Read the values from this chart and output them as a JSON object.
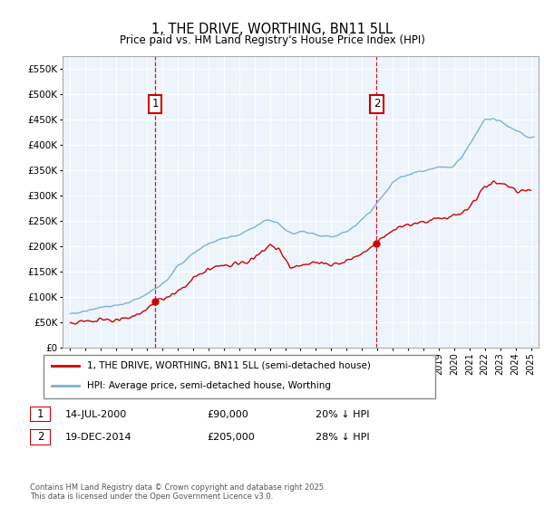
{
  "title": "1, THE DRIVE, WORTHING, BN11 5LL",
  "subtitle": "Price paid vs. HM Land Registry's House Price Index (HPI)",
  "ytick_values": [
    0,
    50000,
    100000,
    150000,
    200000,
    250000,
    300000,
    350000,
    400000,
    450000,
    500000,
    550000
  ],
  "ylim": [
    0,
    575000
  ],
  "xlim_start": 1994.5,
  "xlim_end": 2025.5,
  "hpi_color": "#7ab3d4",
  "price_color": "#cc0000",
  "vline_color": "#cc0000",
  "bg_fill_color": "#ddeeff",
  "marker1_x": 2000.54,
  "marker1_y": 90000,
  "marker1_label": "1",
  "marker2_x": 2014.96,
  "marker2_y": 205000,
  "marker2_label": "2",
  "legend_line1": "1, THE DRIVE, WORTHING, BN11 5LL (semi-detached house)",
  "legend_line2": "HPI: Average price, semi-detached house, Worthing",
  "footnote": "Contains HM Land Registry data © Crown copyright and database right 2025.\nThis data is licensed under the Open Government Licence v3.0.",
  "table_row1": [
    "1",
    "14-JUL-2000",
    "£90,000",
    "20% ↓ HPI"
  ],
  "table_row2": [
    "2",
    "19-DEC-2014",
    "£205,000",
    "28% ↓ HPI"
  ]
}
